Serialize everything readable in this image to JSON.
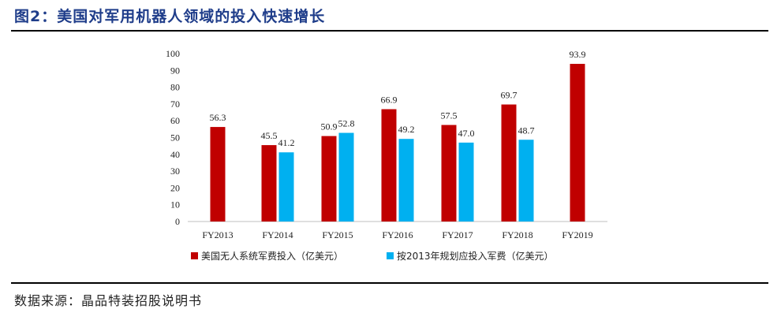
{
  "header": {
    "title": "图2：美国对军用机器人领域的投入快速增长"
  },
  "footer": {
    "source": "数据来源：晶品特装招股说明书"
  },
  "chart_data": {
    "type": "bar",
    "title": "",
    "xlabel": "",
    "ylabel": "",
    "ylim": [
      0,
      100
    ],
    "yticks": [
      0,
      10,
      20,
      30,
      40,
      50,
      60,
      70,
      80,
      90,
      100
    ],
    "categories": [
      "FY2013",
      "FY2014",
      "FY2015",
      "FY2016",
      "FY2017",
      "FY2018",
      "FY2019"
    ],
    "series": [
      {
        "name": "美国无人系统军费投入（亿美元）",
        "color": "#c00000",
        "values": [
          56.3,
          45.5,
          50.9,
          66.9,
          57.5,
          69.7,
          93.9
        ]
      },
      {
        "name": "按2013年规划应投入军费（亿美元）",
        "color": "#00b0f0",
        "values": [
          null,
          41.2,
          52.8,
          49.2,
          47.0,
          48.7,
          null
        ]
      }
    ],
    "grid": false,
    "legend_position": "bottom"
  }
}
